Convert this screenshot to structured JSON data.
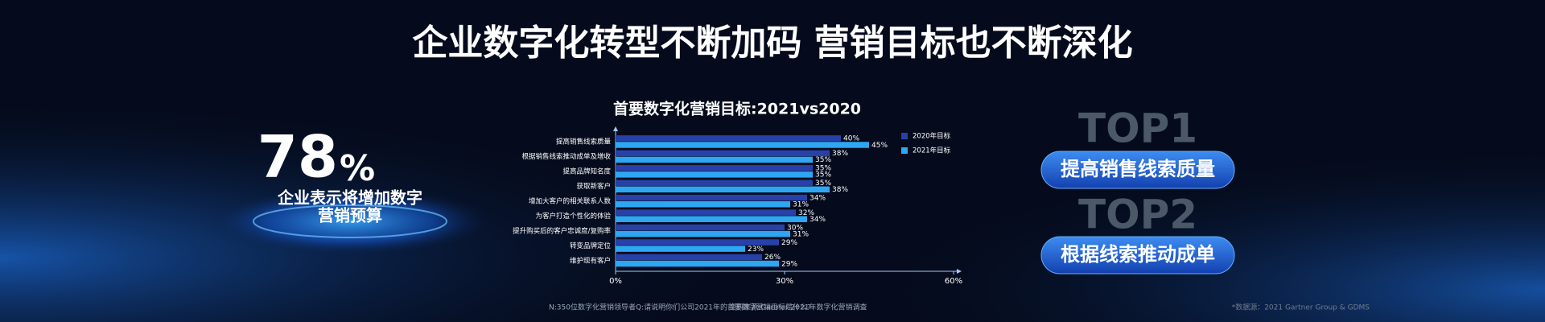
{
  "header": {
    "title": "企业数字化转型不断加码 营销目标也不断深化"
  },
  "stat": {
    "number": "78",
    "unit": "%",
    "lines": [
      "企业表示将增加数字",
      "营销预算"
    ]
  },
  "top": [
    {
      "rank": "TOP1",
      "label": "提高销售线索质量"
    },
    {
      "rank": "TOP2",
      "label": "根据线索推动成单"
    }
  ],
  "footer": [
    "N:350位数字化营销领导者",
    "Q:请说明你们公司2021年的首要数字营销目标是什么?",
    "资料来源:Gartner 2021年数字化营销调查",
    "*数据源：2021 Gartner Group & GDMS"
  ],
  "chart_data": {
    "type": "hbar",
    "title": "首要数字化营销目标:2021vs2020",
    "categories": [
      "提高销售线索质量",
      "根据销售线索推动成单及增收",
      "提高品牌知名度",
      "获取新客户",
      "增加大客户的相关联系人数",
      "为客户打造个性化的体验",
      "提升购买后的客户忠诚度/复购率",
      "转变品牌定位",
      "维护现有客户"
    ],
    "series": [
      {
        "name": "2020年目标",
        "color": "#2741a8",
        "values": [
          40,
          38,
          35,
          35,
          34,
          32,
          30,
          29,
          26
        ],
        "value_labels": [
          "40%",
          "38%",
          "35%",
          "35%",
          "34%",
          "32%",
          "30%",
          "29%",
          "26%"
        ]
      },
      {
        "name": "2021年目标",
        "color": "#2ea6f2",
        "values": [
          45,
          35,
          35,
          38,
          31,
          34,
          31,
          23,
          29
        ],
        "value_labels": [
          "45%",
          "35%",
          "35%",
          "38%",
          "31%",
          "34%",
          "31%",
          "23%",
          "29%"
        ]
      }
    ],
    "xlim": [
      0,
      60
    ],
    "xticks": [
      {
        "value": 0,
        "label": "0%"
      },
      {
        "value": 30,
        "label": "30%"
      },
      {
        "value": 60,
        "label": "60%"
      }
    ],
    "legend": "top-right"
  }
}
